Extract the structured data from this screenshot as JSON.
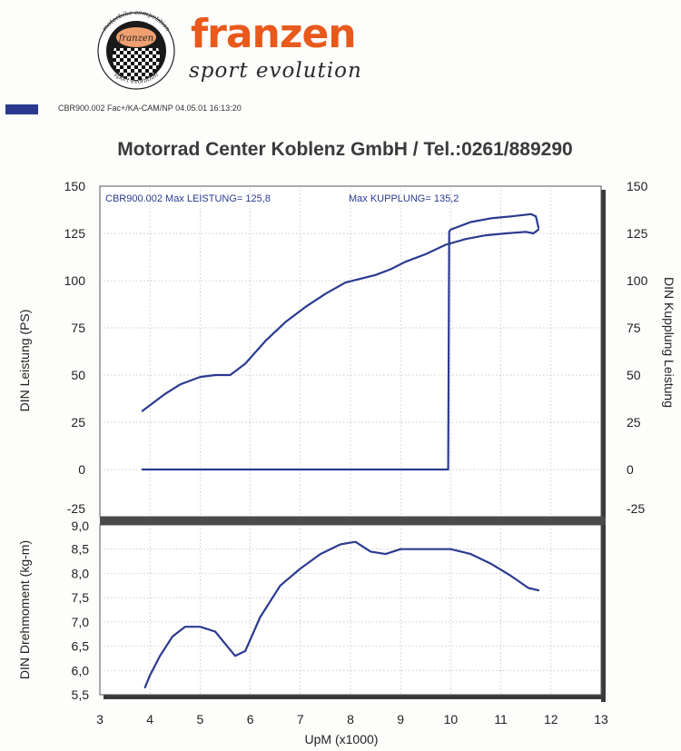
{
  "logo": {
    "ring_text_top": "motorbike competition",
    "ring_text_bottom": "sport evolution",
    "badge_text": "franzen",
    "name": "franzen",
    "tagline": "sport evolution"
  },
  "run_info": "CBR900.002   Fac+/KA-CAM/NP  04.05.01 16:13:20",
  "title": "Motorrad Center Koblenz GmbH / Tel.:0261/889290",
  "colors": {
    "series": "#2b3a90",
    "brand": "#e8591c",
    "frame_shadow": "#3a3a3a"
  },
  "chart_data": [
    {
      "type": "line",
      "annotations": [
        {
          "run": "CBR900.002",
          "label": "Max LEISTUNG= 125,8"
        },
        {
          "label": "Max KUPPLUNG= 135,2"
        }
      ],
      "xlim": [
        3,
        13
      ],
      "ylim": [
        -25,
        150
      ],
      "ylabel": "DIN Leistung (PS)",
      "ylabel_right": "DIN Kupplung Leistung",
      "yticks": [
        "150",
        "125",
        "100",
        "75",
        "50",
        "25",
        "0",
        "-25"
      ],
      "yticks_right": [
        "150",
        "125",
        "100",
        "75",
        "50",
        "25",
        "0",
        "-25"
      ],
      "grid": true,
      "series": [
        {
          "name": "DIN Leistung",
          "x": [
            3.85,
            4.0,
            4.3,
            4.6,
            5.0,
            5.3,
            5.6,
            5.9,
            6.3,
            6.7,
            7.1,
            7.5,
            7.9,
            8.2,
            8.5,
            8.8,
            9.1,
            9.5,
            9.9,
            10.3,
            10.7,
            11.1,
            11.5,
            11.65,
            11.75
          ],
          "y": [
            31,
            34,
            40,
            45,
            49,
            50,
            50,
            56,
            68,
            78,
            86,
            93,
            99,
            101,
            103,
            106,
            110,
            114,
            119,
            122,
            124,
            125,
            125.8,
            125,
            127
          ]
        },
        {
          "name": "DIN Kupplung",
          "x": [
            3.85,
            9.95,
            9.97,
            10.0,
            10.4,
            10.8,
            11.2,
            11.6,
            11.7,
            11.75
          ],
          "y": [
            0,
            0,
            126,
            127,
            131,
            133,
            134,
            135.2,
            134,
            128
          ]
        }
      ]
    },
    {
      "type": "line",
      "xlim": [
        3,
        13
      ],
      "ylim": [
        5.5,
        9.0
      ],
      "xlabel": "UpM (x1000)",
      "ylabel": "DIN Drehmoment (kg-m)",
      "xticks": [
        "3",
        "4",
        "5",
        "6",
        "7",
        "8",
        "9",
        "10",
        "11",
        "12",
        "13"
      ],
      "yticks": [
        "9,0",
        "8,5",
        "8,0",
        "7,5",
        "7,0",
        "6,5",
        "6,0",
        "5,5"
      ],
      "grid": true,
      "series": [
        {
          "name": "DIN Drehmoment",
          "x": [
            3.9,
            4.0,
            4.2,
            4.45,
            4.7,
            5.0,
            5.3,
            5.5,
            5.7,
            5.9,
            6.2,
            6.6,
            7.0,
            7.4,
            7.8,
            8.1,
            8.4,
            8.7,
            9.0,
            9.3,
            9.6,
            10.0,
            10.4,
            10.8,
            11.2,
            11.55,
            11.75
          ],
          "y": [
            5.65,
            5.9,
            6.3,
            6.7,
            6.9,
            6.9,
            6.8,
            6.55,
            6.3,
            6.4,
            7.1,
            7.75,
            8.1,
            8.4,
            8.6,
            8.65,
            8.45,
            8.4,
            8.5,
            8.5,
            8.5,
            8.5,
            8.4,
            8.2,
            7.95,
            7.7,
            7.65
          ]
        }
      ]
    }
  ]
}
